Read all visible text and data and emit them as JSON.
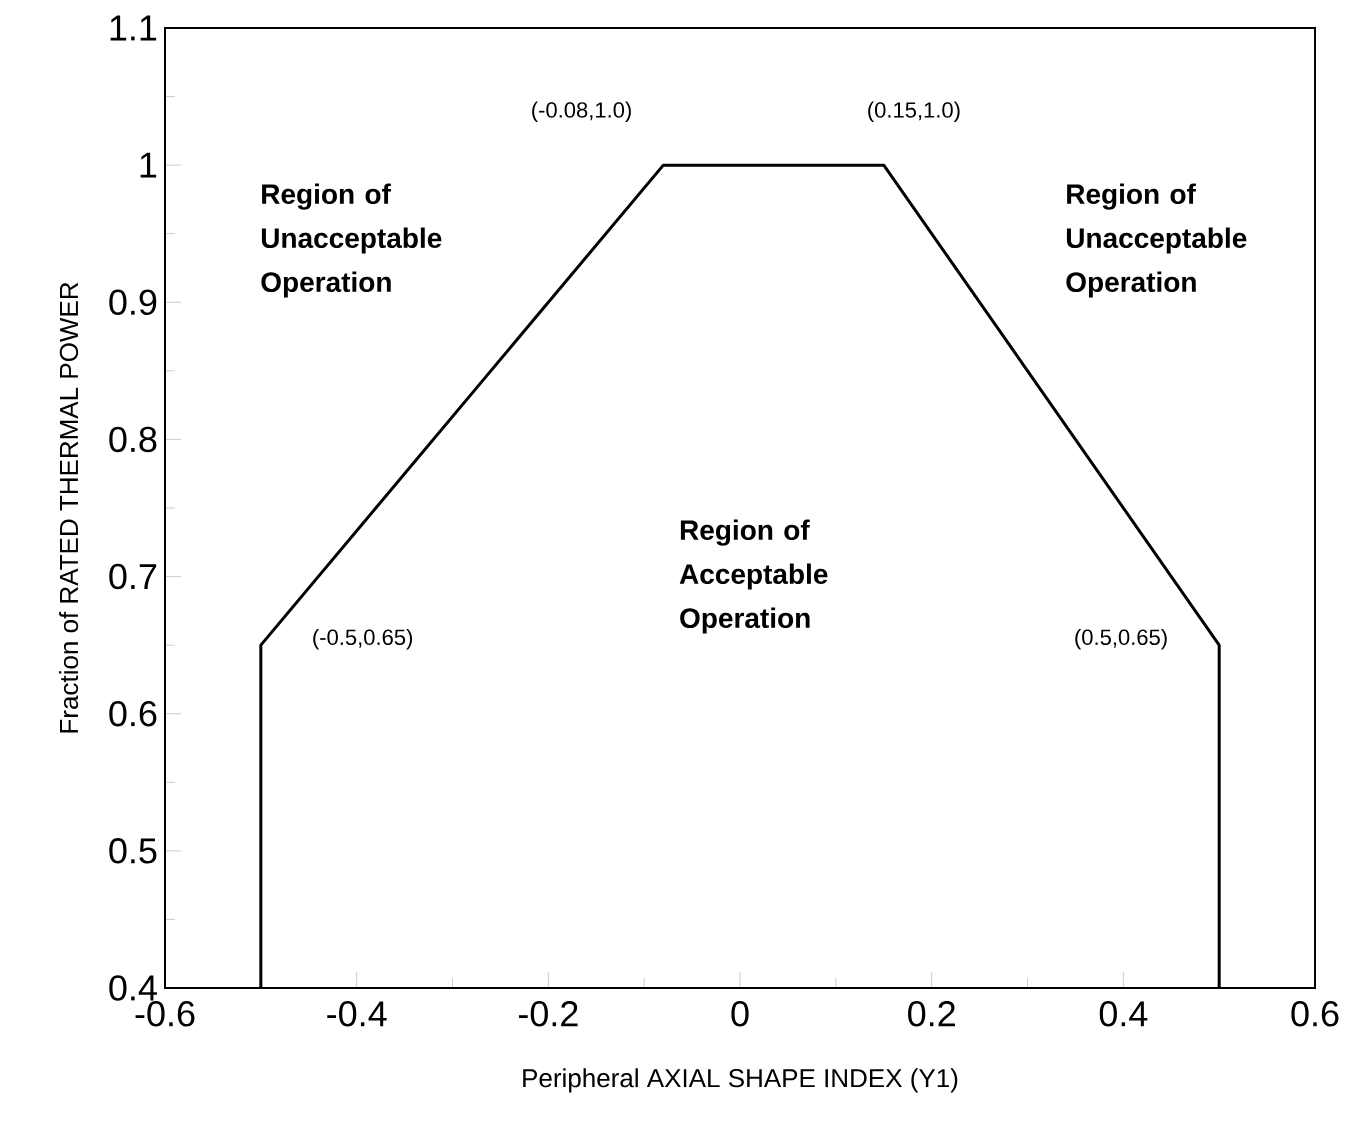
{
  "chart_data": {
    "type": "line",
    "xlabel": "Peripheral AXIAL SHAPE INDEX (Y1)",
    "ylabel": "Fraction of RATED THERMAL POWER",
    "x": [
      -0.5,
      -0.5,
      -0.08,
      0.15,
      0.5,
      0.5
    ],
    "series": [
      {
        "color": "#000000",
        "values": [
          0.4,
          0.65,
          1.0,
          1.0,
          0.65,
          0.4
        ]
      }
    ],
    "xlim": [
      -0.6,
      0.6
    ],
    "ylim": [
      0.4,
      1.1
    ],
    "xticks": [
      -0.6,
      -0.4,
      -0.2,
      0,
      0.2,
      0.4,
      0.6
    ],
    "yticks": [
      0.4,
      0.5,
      0.6,
      0.7,
      0.8,
      0.9,
      1,
      1.1
    ],
    "grid": false,
    "marker": "none",
    "line_style": "solid",
    "annotations": [
      {
        "text": "(-0.5,0.65)",
        "x": -0.5,
        "y": 0.65
      },
      {
        "text": "(-0.08,1.0)",
        "x": -0.08,
        "y": 1.0
      },
      {
        "text": "(0.15,1.0)",
        "x": 0.15,
        "y": 1.0
      },
      {
        "text": "(0.5,0.65)",
        "x": 0.5,
        "y": 0.65
      },
      "Region of Unacceptable Operation",
      "Region of Acceptable Operation",
      "Region of Unacceptable Operation"
    ]
  }
}
